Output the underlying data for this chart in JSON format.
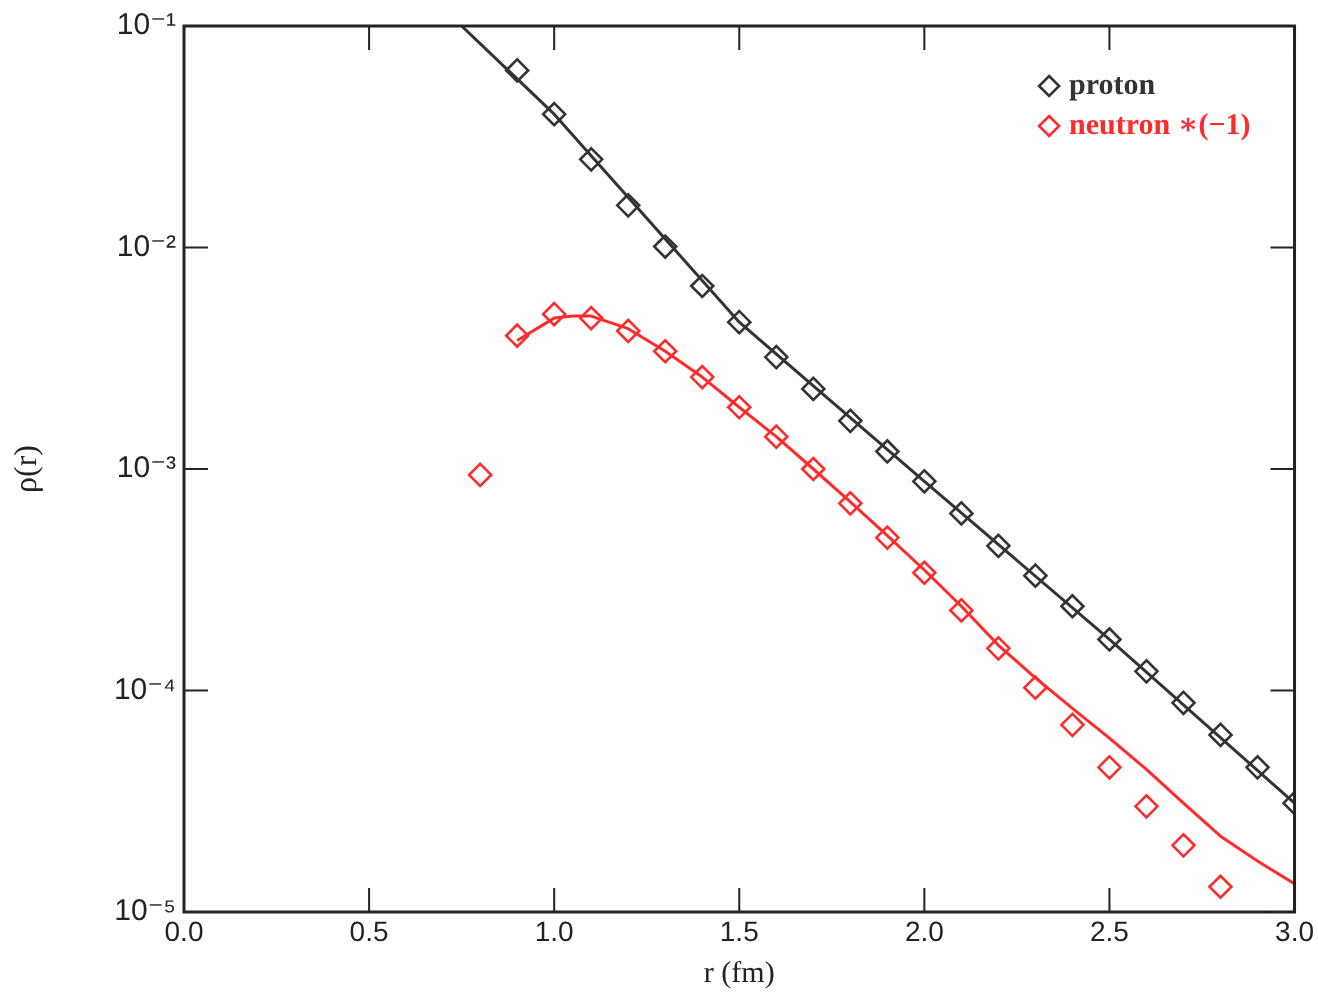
{
  "chart_data": {
    "type": "scatter",
    "xlabel": "r (fm)",
    "ylabel": "ρ(r)",
    "log": "y",
    "xlim": [
      0,
      3
    ],
    "ylim": [
      1e-05,
      0.1
    ],
    "xticks": [
      {
        "value": 0,
        "label": "0.0"
      },
      {
        "value": 0.5,
        "label": "0.5"
      },
      {
        "value": 1,
        "label": "1.0"
      },
      {
        "value": 1.5,
        "label": "1.5"
      },
      {
        "value": 2,
        "label": "2.0"
      },
      {
        "value": 2.5,
        "label": "2.5"
      },
      {
        "value": 3,
        "label": "3.0"
      }
    ],
    "yticks": [
      {
        "value": 1e-05,
        "label": "10⁻⁵"
      },
      {
        "value": 0.0001,
        "label": "10⁻⁴"
      },
      {
        "value": 0.001,
        "label": "10⁻³"
      },
      {
        "value": 0.01,
        "label": "10⁻²"
      },
      {
        "value": 0.1,
        "label": "10⁻¹"
      }
    ],
    "legend": "top right",
    "series": [
      {
        "name": "proton",
        "marker": "diamond",
        "color": "#333333",
        "x": [
          0.9,
          1.0,
          1.1,
          1.2,
          1.3,
          1.4,
          1.5,
          1.6,
          1.7,
          1.8,
          1.9,
          2.0,
          2.1,
          2.2,
          2.3,
          2.4,
          2.5,
          2.6,
          2.7,
          2.8,
          2.9,
          3.0
        ],
        "values": [
          0.063,
          0.04,
          0.025,
          0.0155,
          0.0101,
          0.0067,
          0.0046,
          0.0032,
          0.0023,
          0.00165,
          0.0012,
          0.00088,
          0.00063,
          0.00045,
          0.00033,
          0.00024,
          0.00017,
          0.000122,
          8.8e-05,
          6.3e-05,
          4.5e-05,
          3.1e-05
        ]
      },
      {
        "name": "neutron ∗(−1)",
        "marker": "diamond",
        "color": "#ff2a2a",
        "x": [
          0.8,
          0.9,
          1.0,
          1.1,
          1.2,
          1.3,
          1.4,
          1.5,
          1.6,
          1.7,
          1.8,
          1.9,
          2.0,
          2.1,
          2.2,
          2.3,
          2.4,
          2.5,
          2.6,
          2.7,
          2.8
        ],
        "values": [
          0.00094,
          0.004,
          0.005,
          0.0048,
          0.0042,
          0.0034,
          0.0026,
          0.0019,
          0.0014,
          0.001,
          0.0007,
          0.00049,
          0.00034,
          0.00023,
          0.000155,
          0.000103,
          7e-05,
          4.5e-05,
          3e-05,
          2e-05,
          1.3e-05
        ]
      },
      {
        "type": "line",
        "marker": "none",
        "color": "#333333",
        "x": [
          0.75,
          1.0,
          1.5,
          2.0,
          2.5,
          3.0
        ],
        "values": [
          0.1,
          0.04,
          0.0046,
          0.00088,
          0.00017,
          3.1e-05
        ]
      },
      {
        "type": "line",
        "marker": "none",
        "color": "#ff2a2a",
        "x": [
          0.9,
          1.0,
          1.05,
          1.1,
          1.2,
          1.3,
          1.4,
          1.5,
          1.6,
          1.7,
          1.8,
          1.9,
          2.0,
          2.1,
          2.2,
          2.3,
          2.4,
          2.5,
          2.6,
          2.7,
          2.8,
          2.9,
          3.0
        ],
        "values": [
          0.0038,
          0.0048,
          0.0049,
          0.0049,
          0.0043,
          0.0034,
          0.0026,
          0.0019,
          0.0014,
          0.001,
          0.00071,
          0.0005,
          0.00035,
          0.00024,
          0.00016,
          0.000114,
          8.3e-05,
          6.1e-05,
          4.4e-05,
          3.1e-05,
          2.2e-05,
          1.7e-05,
          1.34e-05
        ]
      }
    ]
  }
}
